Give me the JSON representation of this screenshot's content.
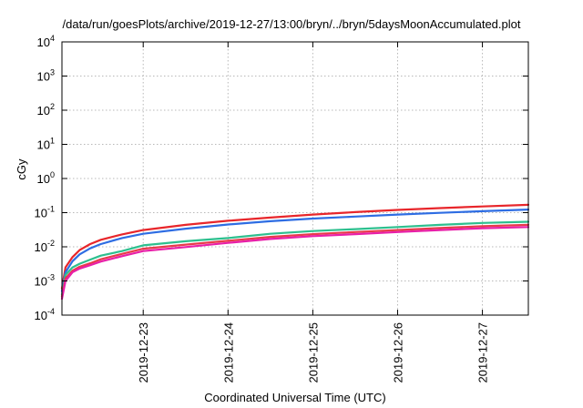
{
  "chart_data": {
    "type": "line",
    "title": "/data/run/goesPlots/archive/2019-12-27/13:00/bryn/../bryn/5daysMoonAccumulated.plot",
    "xlabel": "Coordinated Universal Time (UTC)",
    "ylabel": "cGy",
    "y_scale": "log",
    "ylim": [
      "1e-4",
      "1e4"
    ],
    "y_ticks": [
      {
        "value": "1e-4",
        "base": "10",
        "exp": "-4"
      },
      {
        "value": "1e-3",
        "base": "10",
        "exp": "-3"
      },
      {
        "value": "1e-2",
        "base": "10",
        "exp": "-2"
      },
      {
        "value": "1e-1",
        "base": "10",
        "exp": "-1"
      },
      {
        "value": "1e0",
        "base": "10",
        "exp": "0"
      },
      {
        "value": "1e1",
        "base": "10",
        "exp": "1"
      },
      {
        "value": "1e2",
        "base": "10",
        "exp": "2"
      },
      {
        "value": "1e3",
        "base": "10",
        "exp": "3"
      },
      {
        "value": "1e4",
        "base": "10",
        "exp": "4"
      }
    ],
    "xlim": [
      "2019-12-22 01:00",
      "2019-12-27 13:00"
    ],
    "x_ticks": [
      "2019-12-23",
      "2019-12-24",
      "2019-12-25",
      "2019-12-26",
      "2019-12-27"
    ],
    "grid": true,
    "series": [
      {
        "color": "#e8262b",
        "points": [
          [
            "2019-12-22 01:00",
            0.0006
          ],
          [
            "2019-12-22 02:00",
            0.0025
          ],
          [
            "2019-12-22 04:00",
            0.005
          ],
          [
            "2019-12-22 06:00",
            0.008
          ],
          [
            "2019-12-22 09:00",
            0.012
          ],
          [
            "2019-12-22 12:00",
            0.016
          ],
          [
            "2019-12-22 18:00",
            0.023
          ],
          [
            "2019-12-23 00:00",
            0.031
          ],
          [
            "2019-12-23 12:00",
            0.044
          ],
          [
            "2019-12-24 00:00",
            0.058
          ],
          [
            "2019-12-24 12:00",
            0.072
          ],
          [
            "2019-12-25 00:00",
            0.088
          ],
          [
            "2019-12-25 12:00",
            0.104
          ],
          [
            "2019-12-26 00:00",
            0.12
          ],
          [
            "2019-12-26 12:00",
            0.136
          ],
          [
            "2019-12-27 00:00",
            0.152
          ],
          [
            "2019-12-27 13:00",
            0.17
          ]
        ]
      },
      {
        "color": "#2e6de3",
        "points": [
          [
            "2019-12-22 01:00",
            0.0005
          ],
          [
            "2019-12-22 02:00",
            0.0018
          ],
          [
            "2019-12-22 04:00",
            0.0038
          ],
          [
            "2019-12-22 06:00",
            0.006
          ],
          [
            "2019-12-22 09:00",
            0.009
          ],
          [
            "2019-12-22 12:00",
            0.012
          ],
          [
            "2019-12-22 18:00",
            0.018
          ],
          [
            "2019-12-23 00:00",
            0.024
          ],
          [
            "2019-12-23 12:00",
            0.034
          ],
          [
            "2019-12-24 00:00",
            0.045
          ],
          [
            "2019-12-24 12:00",
            0.056
          ],
          [
            "2019-12-25 00:00",
            0.067
          ],
          [
            "2019-12-25 12:00",
            0.077
          ],
          [
            "2019-12-26 00:00",
            0.088
          ],
          [
            "2019-12-26 12:00",
            0.099
          ],
          [
            "2019-12-27 00:00",
            0.11
          ],
          [
            "2019-12-27 13:00",
            0.123
          ]
        ]
      },
      {
        "color": "#2dbf8e",
        "points": [
          [
            "2019-12-22 01:00",
            0.0004
          ],
          [
            "2019-12-22 02:00",
            0.0015
          ],
          [
            "2019-12-22 04:00",
            0.0025
          ],
          [
            "2019-12-22 06:00",
            0.0032
          ],
          [
            "2019-12-22 09:00",
            0.0042
          ],
          [
            "2019-12-22 12:00",
            0.0055
          ],
          [
            "2019-12-22 18:00",
            0.0075
          ],
          [
            "2019-12-23 00:00",
            0.011
          ],
          [
            "2019-12-23 12:00",
            0.0145
          ],
          [
            "2019-12-24 00:00",
            0.018
          ],
          [
            "2019-12-24 12:00",
            0.024
          ],
          [
            "2019-12-25 00:00",
            0.029
          ],
          [
            "2019-12-25 12:00",
            0.033
          ],
          [
            "2019-12-26 00:00",
            0.038
          ],
          [
            "2019-12-26 12:00",
            0.044
          ],
          [
            "2019-12-27 00:00",
            0.05
          ],
          [
            "2019-12-27 13:00",
            0.054
          ]
        ]
      },
      {
        "color": "#e83a4a",
        "points": [
          [
            "2019-12-22 01:00",
            0.00035
          ],
          [
            "2019-12-22 02:00",
            0.0012
          ],
          [
            "2019-12-22 04:00",
            0.002
          ],
          [
            "2019-12-22 06:00",
            0.0026
          ],
          [
            "2019-12-22 09:00",
            0.0033
          ],
          [
            "2019-12-22 12:00",
            0.0043
          ],
          [
            "2019-12-22 18:00",
            0.0062
          ],
          [
            "2019-12-23 00:00",
            0.0088
          ],
          [
            "2019-12-23 12:00",
            0.0116
          ],
          [
            "2019-12-24 00:00",
            0.015
          ],
          [
            "2019-12-24 12:00",
            0.0195
          ],
          [
            "2019-12-25 00:00",
            0.0235
          ],
          [
            "2019-12-25 12:00",
            0.027
          ],
          [
            "2019-12-26 00:00",
            0.031
          ],
          [
            "2019-12-26 12:00",
            0.0355
          ],
          [
            "2019-12-27 00:00",
            0.04
          ],
          [
            "2019-12-27 13:00",
            0.044
          ]
        ]
      },
      {
        "color": "#e81fa8",
        "points": [
          [
            "2019-12-22 01:00",
            0.0003
          ],
          [
            "2019-12-22 02:00",
            0.001
          ],
          [
            "2019-12-22 04:00",
            0.0018
          ],
          [
            "2019-12-22 06:00",
            0.0023
          ],
          [
            "2019-12-22 09:00",
            0.0029
          ],
          [
            "2019-12-22 12:00",
            0.0037
          ],
          [
            "2019-12-22 18:00",
            0.0053
          ],
          [
            "2019-12-23 00:00",
            0.0075
          ],
          [
            "2019-12-23 12:00",
            0.0098
          ],
          [
            "2019-12-24 00:00",
            0.013
          ],
          [
            "2019-12-24 12:00",
            0.017
          ],
          [
            "2019-12-25 00:00",
            0.0205
          ],
          [
            "2019-12-25 12:00",
            0.0235
          ],
          [
            "2019-12-26 00:00",
            0.027
          ],
          [
            "2019-12-26 12:00",
            0.031
          ],
          [
            "2019-12-27 00:00",
            0.035
          ],
          [
            "2019-12-27 13:00",
            0.038
          ]
        ]
      }
    ]
  }
}
